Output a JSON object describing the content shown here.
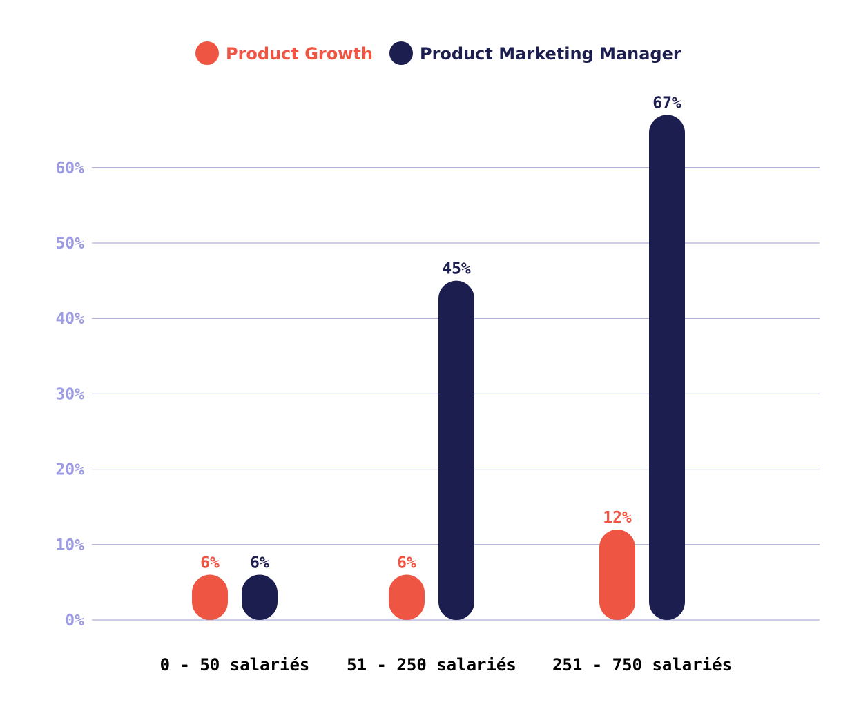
{
  "chart_data": {
    "type": "bar",
    "categories": [
      "0 - 50 salariés",
      "51 - 250 salariés",
      "251 - 750 salariés"
    ],
    "series": [
      {
        "name": "Product Growth",
        "color": "#ef5543",
        "values": [
          6,
          6,
          12
        ],
        "labels": [
          "6%",
          "6%",
          "12%"
        ]
      },
      {
        "name": "Product Marketing Manager",
        "color": "#1d1e50",
        "values": [
          6,
          45,
          67
        ],
        "labels": [
          "6%",
          "45%",
          "67%"
        ]
      }
    ],
    "y_ticks": [
      {
        "value": 0,
        "label": "0%"
      },
      {
        "value": 10,
        "label": "10%"
      },
      {
        "value": 20,
        "label": "20%"
      },
      {
        "value": 30,
        "label": "30%"
      },
      {
        "value": 40,
        "label": "40%"
      },
      {
        "value": 50,
        "label": "50%"
      },
      {
        "value": 60,
        "label": "60%"
      }
    ],
    "ylim": [
      0,
      67
    ],
    "grid": true,
    "legend_position": "top-center",
    "colors": {
      "gridline": "#9b9bd0",
      "tick_label": "#9d9be3",
      "category_label": "#000000"
    }
  }
}
